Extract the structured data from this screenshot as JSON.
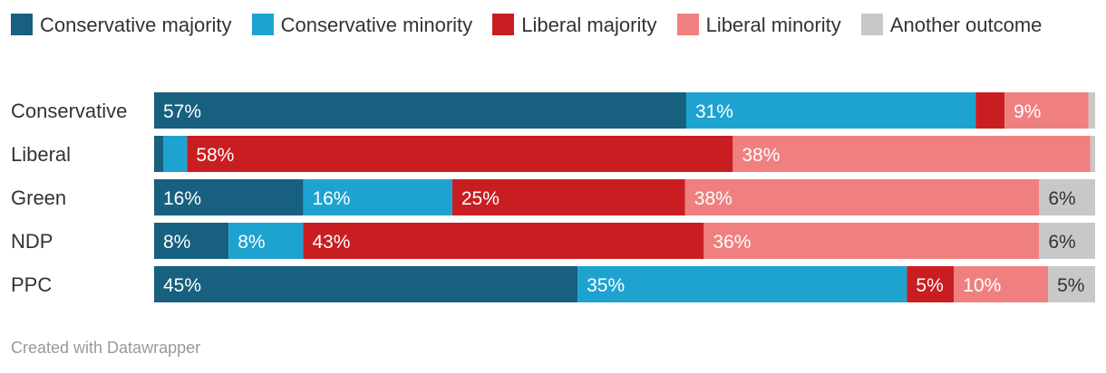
{
  "chart_data": {
    "type": "bar",
    "orientation": "horizontal",
    "stacked": true,
    "normalized": true,
    "legend_position": "top",
    "series": [
      {
        "name": "Conservative majority",
        "color": "#17607f"
      },
      {
        "name": "Conservative minority",
        "color": "#1ea3d1"
      },
      {
        "name": "Liberal majority",
        "color": "#c91e21"
      },
      {
        "name": "Liberal minority",
        "color": "#f08080"
      },
      {
        "name": "Another outcome",
        "color": "#c8c8c8"
      }
    ],
    "rows": [
      {
        "label": "Conservative",
        "values": [
          57,
          31,
          3.1,
          9,
          0.7
        ],
        "labels": [
          "57%",
          "31%",
          "",
          "9%",
          ""
        ]
      },
      {
        "label": "Liberal",
        "values": [
          1,
          2.5,
          58,
          38,
          0.5
        ],
        "labels": [
          "",
          "",
          "58%",
          "38%",
          ""
        ]
      },
      {
        "label": "Green",
        "values": [
          16,
          16,
          25,
          38,
          6
        ],
        "labels": [
          "16%",
          "16%",
          "25%",
          "38%",
          "6%"
        ]
      },
      {
        "label": "NDP",
        "values": [
          8,
          8,
          43,
          36,
          6
        ],
        "labels": [
          "8%",
          "8%",
          "43%",
          "36%",
          "6%"
        ]
      },
      {
        "label": "PPC",
        "values": [
          45,
          35,
          5,
          10,
          5
        ],
        "labels": [
          "45%",
          "35%",
          "5%",
          "10%",
          "5%"
        ]
      }
    ]
  },
  "footer": "Created with Datawrapper"
}
